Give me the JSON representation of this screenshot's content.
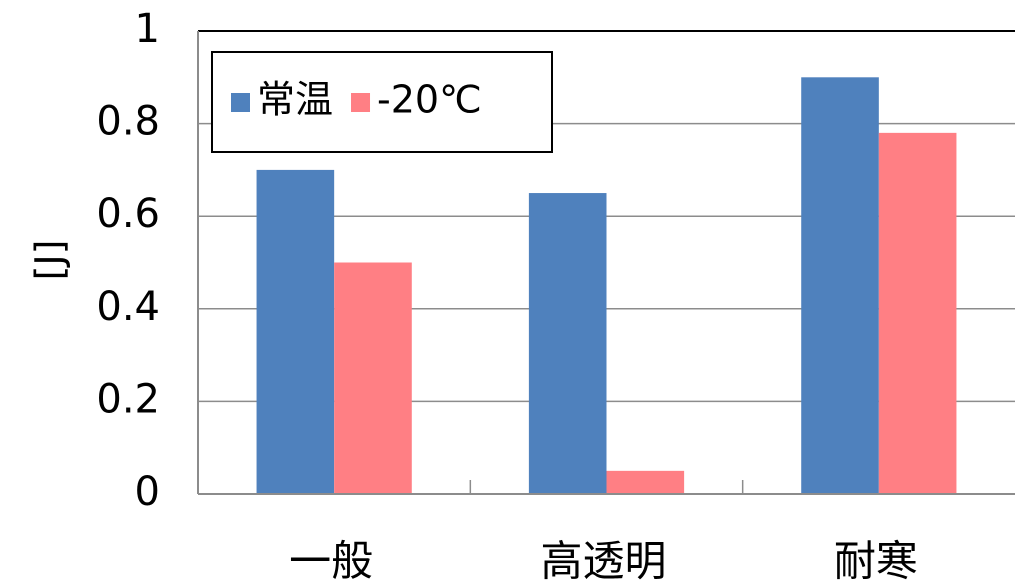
{
  "chart_data": {
    "type": "bar",
    "title": "",
    "xlabel": "",
    "ylabel": "[J]",
    "ylim": [
      0,
      1
    ],
    "yticks": [
      "0",
      "0.2",
      "0.4",
      "0.6",
      "0.8",
      "1"
    ],
    "categories": [
      "一般",
      "高透明",
      "耐寒"
    ],
    "series": [
      {
        "name": "常温",
        "color": "#4F81BD",
        "values": [
          0.7,
          0.65,
          0.9
        ]
      },
      {
        "name": "-20℃",
        "color": "#FF7F84",
        "values": [
          0.5,
          0.05,
          0.78
        ]
      }
    ],
    "grid": true,
    "legend_position": "top-left"
  }
}
